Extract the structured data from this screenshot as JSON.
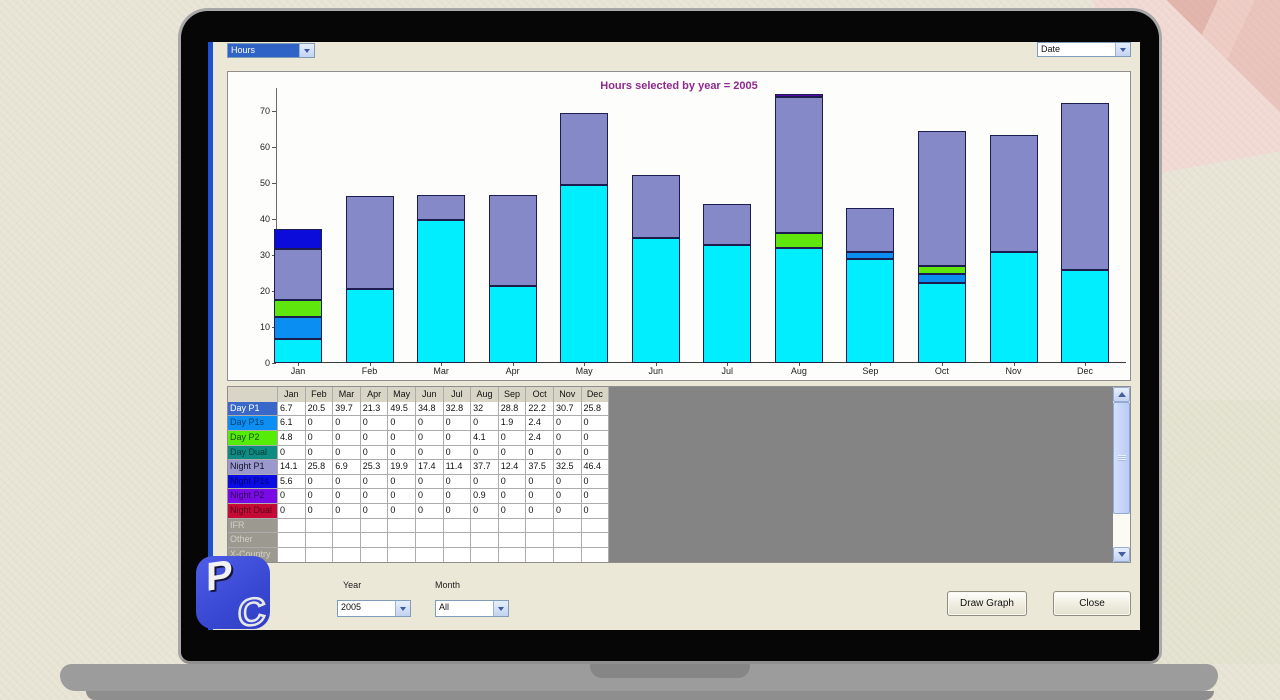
{
  "app": {
    "field_dropdown": {
      "value": "Hours"
    },
    "sort_dropdown": {
      "value": "Date"
    }
  },
  "chart_data": {
    "type": "stacked-bar",
    "title": "Hours selected by year = 2005",
    "title_color": "#8F2A8F",
    "categories": [
      "Jan",
      "Feb",
      "Mar",
      "Apr",
      "May",
      "Jun",
      "Jul",
      "Aug",
      "Sep",
      "Oct",
      "Nov",
      "Dec"
    ],
    "yticks": [
      0,
      10,
      20,
      30,
      40,
      50,
      60,
      70
    ],
    "ylim": [
      0,
      76
    ],
    "grid": false,
    "legend": "none",
    "series": [
      {
        "name": "Day P1",
        "color": "#00EEFE",
        "values": [
          6.7,
          20.5,
          39.7,
          21.3,
          49.5,
          34.8,
          32.8,
          32,
          28.8,
          22.2,
          30.7,
          25.8
        ]
      },
      {
        "name": "Day P1s",
        "color": "#0A8EF2",
        "values": [
          6.1,
          0,
          0,
          0,
          0,
          0,
          0,
          0,
          1.9,
          2.4,
          0,
          0
        ]
      },
      {
        "name": "Day P2",
        "color": "#5FE60C",
        "values": [
          4.8,
          0,
          0,
          0,
          0,
          0,
          0,
          4.1,
          0,
          2.4,
          0,
          0
        ]
      },
      {
        "name": "Day Dual",
        "color": "#0E8C84",
        "values": [
          0,
          0,
          0,
          0,
          0,
          0,
          0,
          0,
          0,
          0,
          0,
          0
        ]
      },
      {
        "name": "Night P1",
        "color": "#8689C7",
        "values": [
          14.1,
          25.8,
          6.9,
          25.3,
          19.9,
          17.4,
          11.4,
          37.7,
          12.4,
          37.5,
          32.5,
          46.4
        ]
      },
      {
        "name": "Night P1s",
        "color": "#0B0BDA",
        "values": [
          5.6,
          0,
          0,
          0,
          0,
          0,
          0,
          0,
          0,
          0,
          0,
          0
        ]
      },
      {
        "name": "Night P2",
        "color": "#5509AE",
        "values": [
          0,
          0,
          0,
          0,
          0,
          0,
          0,
          0.9,
          0,
          0,
          0,
          0
        ]
      },
      {
        "name": "Night Dual",
        "color": "#C60A36",
        "values": [
          0,
          0,
          0,
          0,
          0,
          0,
          0,
          0,
          0,
          0,
          0,
          0
        ]
      }
    ]
  },
  "table": {
    "columns": [
      "Jan",
      "Feb",
      "Mar",
      "Apr",
      "May",
      "Jun",
      "Jul",
      "Aug",
      "Sep",
      "Oct",
      "Nov",
      "Dec"
    ],
    "rows": [
      {
        "label": "Day P1",
        "label_bg": "#3A68C8",
        "label_fg": "#FFFFFF",
        "values": [
          "6.7",
          "20.5",
          "39.7",
          "21.3",
          "49.5",
          "34.8",
          "32.8",
          "32",
          "28.8",
          "22.2",
          "30.7",
          "25.8"
        ]
      },
      {
        "label": "Day P1s",
        "label_bg": "#0C8EF2",
        "label_fg": "#06406E",
        "values": [
          "6.1",
          "0",
          "0",
          "0",
          "0",
          "0",
          "0",
          "0",
          "1.9",
          "2.4",
          "0",
          "0"
        ]
      },
      {
        "label": "Day P2",
        "label_bg": "#55EC08",
        "label_fg": "#1A4A04",
        "values": [
          "4.8",
          "0",
          "0",
          "0",
          "0",
          "0",
          "0",
          "4.1",
          "0",
          "2.4",
          "0",
          "0"
        ]
      },
      {
        "label": "Day Dual",
        "label_bg": "#0E8C84",
        "label_fg": "#053A36",
        "values": [
          "0",
          "0",
          "0",
          "0",
          "0",
          "0",
          "0",
          "0",
          "0",
          "0",
          "0",
          "0"
        ]
      },
      {
        "label": "Night P1",
        "label_bg": "#9B98CE",
        "label_fg": "#14142A",
        "values": [
          "14.1",
          "25.8",
          "6.9",
          "25.3",
          "19.9",
          "17.4",
          "11.4",
          "37.7",
          "12.4",
          "37.5",
          "32.5",
          "46.4"
        ]
      },
      {
        "label": "Night P1s",
        "label_bg": "#0B0BE6",
        "label_fg": "#05056E",
        "values": [
          "5.6",
          "0",
          "0",
          "0",
          "0",
          "0",
          "0",
          "0",
          "0",
          "0",
          "0",
          "0"
        ]
      },
      {
        "label": "Night P2",
        "label_bg": "#7B0BE6",
        "label_fg": "#2E0458",
        "values": [
          "0",
          "0",
          "0",
          "0",
          "0",
          "0",
          "0",
          "0.9",
          "0",
          "0",
          "0",
          "0"
        ]
      },
      {
        "label": "Night Dual",
        "label_bg": "#C60A36",
        "label_fg": "#55041A",
        "values": [
          "0",
          "0",
          "0",
          "0",
          "0",
          "0",
          "0",
          "0",
          "0",
          "0",
          "0",
          "0"
        ]
      },
      {
        "label": "IFR",
        "label_bg": "#9C9A90",
        "label_fg": "#D2D0C6",
        "values": [
          "",
          "",
          "",
          "",
          "",
          "",
          "",
          "",
          "",
          "",
          "",
          ""
        ]
      },
      {
        "label": "Other",
        "label_bg": "#9C9A90",
        "label_fg": "#D2D0C6",
        "values": [
          "",
          "",
          "",
          "",
          "",
          "",
          "",
          "",
          "",
          "",
          "",
          ""
        ]
      },
      {
        "label": "X-Country",
        "label_bg": "#9C9A90",
        "label_fg": "#D2D0C6",
        "values": [
          "",
          "",
          "",
          "",
          "",
          "",
          "",
          "",
          "",
          "",
          "",
          ""
        ]
      }
    ]
  },
  "controls": {
    "year_label": "Year",
    "year_value": "2005",
    "month_label": "Month",
    "month_value": "All",
    "draw_graph_button": "Draw Graph",
    "close_button": "Close"
  },
  "logo": {
    "p_letter": "P",
    "c_letter": "C"
  }
}
